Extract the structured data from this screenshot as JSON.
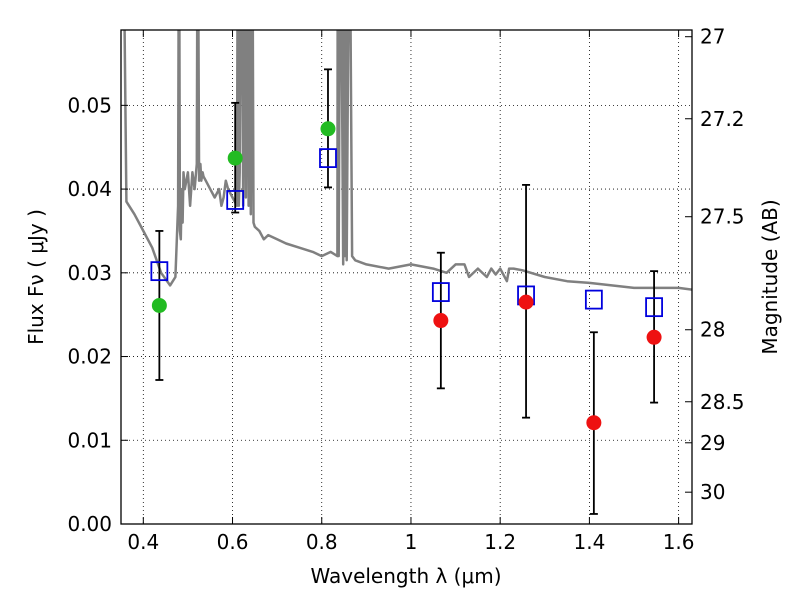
{
  "chart_data": {
    "type": "scatter",
    "xlabel": "Wavelength  λ (μm)",
    "ylabel": "Flux  Fν  ( μJy )",
    "ylabel_right": "Magnitude (AB)",
    "xlim": [
      0.35,
      1.63
    ],
    "ylim": [
      0.0,
      0.059
    ],
    "grid": true,
    "x_ticks": [
      0.4,
      0.6,
      0.8,
      1.0,
      1.2,
      1.4,
      1.6
    ],
    "x_tick_labels": [
      "0.4",
      "0.6",
      "0.8",
      "1",
      "1.2",
      "1.4",
      "1.6"
    ],
    "y_ticks": [
      0.0,
      0.01,
      0.02,
      0.03,
      0.04,
      0.05
    ],
    "y_tick_labels": [
      "0.00",
      "0.01",
      "0.02",
      "0.03",
      "0.04",
      "0.05"
    ],
    "right_ticks": [
      {
        "label": "27",
        "flux": 0.0582
      },
      {
        "label": "27.2",
        "flux": 0.0484
      },
      {
        "label": "27.5",
        "flux": 0.0367
      },
      {
        "label": "28",
        "flux": 0.0232
      },
      {
        "label": "28.5",
        "flux": 0.0146
      },
      {
        "label": "29",
        "flux": 0.0097
      },
      {
        "label": "30",
        "flux": 0.0038
      }
    ],
    "series": [
      {
        "kind": "line",
        "color": "#808080",
        "x": [
          0.35,
          0.362,
          0.38,
          0.4,
          0.42,
          0.44,
          0.46,
          0.472,
          0.478,
          0.48,
          0.482,
          0.484,
          0.486,
          0.488,
          0.49,
          0.493,
          0.5,
          0.505,
          0.51,
          0.515,
          0.52,
          0.522,
          0.525,
          0.528,
          0.53,
          0.533,
          0.535,
          0.54,
          0.55,
          0.56,
          0.57,
          0.575,
          0.58,
          0.585,
          0.59,
          0.6,
          0.61,
          0.612,
          0.614,
          0.616,
          0.62,
          0.624,
          0.627,
          0.63,
          0.633,
          0.636,
          0.638,
          0.641,
          0.644,
          0.647,
          0.65,
          0.66,
          0.67,
          0.68,
          0.7,
          0.72,
          0.75,
          0.78,
          0.8,
          0.82,
          0.835,
          0.836,
          0.838,
          0.842,
          0.848,
          0.85,
          0.852,
          0.854,
          0.856,
          0.862,
          0.868,
          0.875,
          0.9,
          0.95,
          1.0,
          1.05,
          1.08,
          1.1,
          1.12,
          1.13,
          1.15,
          1.17,
          1.18,
          1.19,
          1.2,
          1.215,
          1.22,
          1.23,
          1.25,
          1.3,
          1.35,
          1.4,
          1.45,
          1.5,
          1.55,
          1.6,
          1.63
        ],
        "y": [
          0.1,
          0.0385,
          0.037,
          0.035,
          0.033,
          0.03,
          0.0285,
          0.0295,
          0.038,
          0.08,
          0.035,
          0.034,
          0.04,
          0.036,
          0.042,
          0.04,
          0.042,
          0.038,
          0.042,
          0.04,
          0.043,
          0.08,
          0.041,
          0.043,
          0.041,
          0.042,
          0.0415,
          0.041,
          0.04,
          0.039,
          0.04,
          0.038,
          0.039,
          0.041,
          0.04,
          0.039,
          0.038,
          0.08,
          0.038,
          0.042,
          0.08,
          0.038,
          0.08,
          0.039,
          0.08,
          0.038,
          0.08,
          0.037,
          0.08,
          0.036,
          0.0355,
          0.035,
          0.034,
          0.0345,
          0.034,
          0.0335,
          0.033,
          0.0325,
          0.032,
          0.0325,
          0.032,
          0.08,
          0.032,
          0.08,
          0.031,
          0.08,
          0.032,
          0.08,
          0.0315,
          0.08,
          0.032,
          0.0315,
          0.031,
          0.0305,
          0.031,
          0.0305,
          0.03,
          0.031,
          0.031,
          0.0295,
          0.0305,
          0.0295,
          0.0305,
          0.0298,
          0.0305,
          0.029,
          0.0305,
          0.0305,
          0.0303,
          0.0295,
          0.029,
          0.0288,
          0.0285,
          0.0282,
          0.0282,
          0.0282,
          0.028
        ]
      },
      {
        "kind": "errorbar",
        "color": "#000000",
        "x": [
          0.436,
          0.606,
          0.814,
          1.067,
          1.258,
          1.41,
          1.545
        ],
        "y_low": [
          0.0172,
          0.0372,
          0.0402,
          0.0162,
          0.0127,
          0.0012,
          0.0145
        ],
        "y_high": [
          0.035,
          0.0503,
          0.0543,
          0.0324,
          0.0405,
          0.0229,
          0.0302
        ]
      },
      {
        "kind": "points",
        "marker": "square",
        "color": "#0000dd",
        "x": [
          0.436,
          0.606,
          0.814,
          1.067,
          1.258,
          1.41,
          1.545
        ],
        "y": [
          0.0302,
          0.0387,
          0.0437,
          0.0277,
          0.0273,
          0.0268,
          0.0259
        ]
      },
      {
        "kind": "points",
        "marker": "circle",
        "color": "#22bb22",
        "x": [
          0.436,
          0.606,
          0.814
        ],
        "y": [
          0.0261,
          0.0437,
          0.0472
        ]
      },
      {
        "kind": "points",
        "marker": "circle",
        "color": "#ee1111",
        "x": [
          1.067,
          1.258,
          1.41,
          1.545
        ],
        "y": [
          0.0243,
          0.0265,
          0.0121,
          0.0223
        ]
      }
    ]
  }
}
